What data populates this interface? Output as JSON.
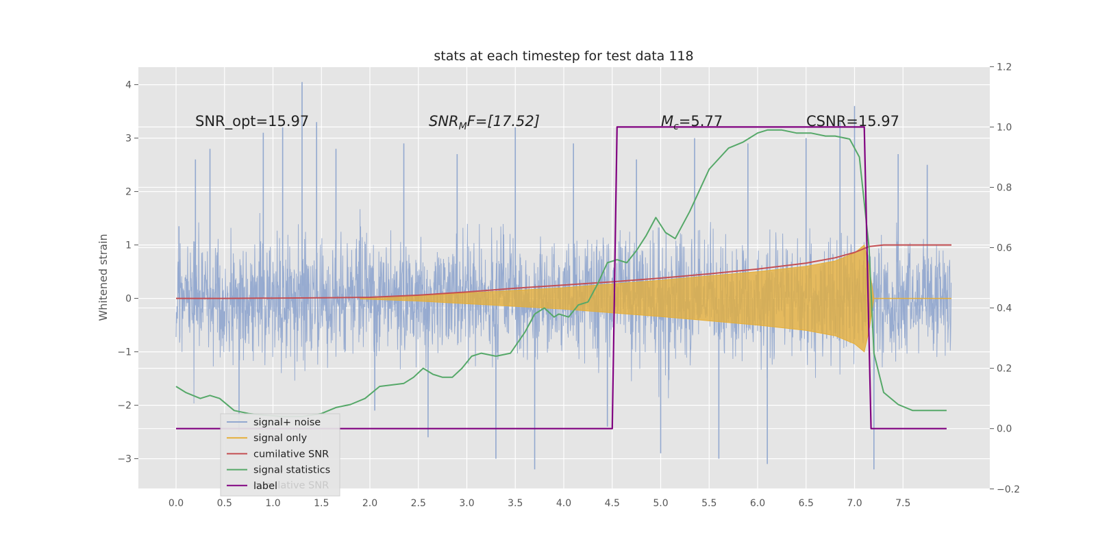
{
  "chart_data": {
    "type": "line",
    "title": "stats at each timestep for test data 118",
    "ylabel": "Whitened strain",
    "xlabel": "",
    "x_ticks": [
      "0.0",
      "0.5",
      "1.0",
      "1.5",
      "2.0",
      "2.5",
      "3.0",
      "3.5",
      "4.0",
      "4.5",
      "5.0",
      "5.5",
      "6.0",
      "6.5",
      "7.0",
      "7.5"
    ],
    "y_ticks_left": [
      "4",
      "3",
      "2",
      "1",
      "0",
      "−1",
      "−2",
      "−3"
    ],
    "y_ticks_right": [
      "1.2",
      "1.0",
      "0.8",
      "0.6",
      "0.4",
      "0.2",
      "0.0",
      "−0.2"
    ],
    "xlim": [
      -0.4,
      8.4
    ],
    "ylim_left": [
      -3.5,
      4.35
    ],
    "ylim_right": [
      -0.2,
      1.2
    ],
    "grid": true,
    "legend_position": "lower-left",
    "annotations": {
      "snr_opt": "SNR_opt=15.97",
      "snr_mf_main": "SNR",
      "snr_mf_sub": "M",
      "snr_mf_tail": "F=[17.52]",
      "mc_main": "M",
      "mc_sub": "c",
      "mc_tail": "=5.77",
      "csnr": "CSNR=15.97"
    },
    "legend_hidden_text": "cumilative SNR",
    "series": [
      {
        "name": "signal+ noise",
        "color": "#92a8cf",
        "axis": "left",
        "description_x_range": [
          0,
          8
        ],
        "noise_spikes_x": [
          0.03,
          0.2,
          0.35,
          0.65,
          0.9,
          1.1,
          1.3,
          1.45,
          1.65,
          2.05,
          2.35,
          2.6,
          2.9,
          3.3,
          3.5,
          3.7,
          4.1,
          4.45,
          4.75,
          5.0,
          5.35,
          5.6,
          5.9,
          6.1,
          6.5,
          6.85,
          7.0,
          7.2,
          7.45,
          7.75
        ],
        "noise_spikes_y": [
          1.35,
          2.6,
          2.8,
          -2.5,
          3.1,
          3.2,
          4.05,
          3.3,
          2.8,
          -2.1,
          2.9,
          -2.6,
          2.7,
          -3.0,
          3.2,
          -3.2,
          2.9,
          -2.4,
          2.6,
          -2.9,
          3.0,
          -3.0,
          2.9,
          -3.1,
          3.0,
          3.3,
          3.6,
          -3.2,
          2.7,
          2.5
        ]
      },
      {
        "name": "signal only",
        "color": "#e5ae38",
        "axis": "left",
        "x": [
          1.9,
          2.5,
          3.0,
          3.5,
          4.0,
          4.5,
          5.0,
          5.5,
          6.0,
          6.5,
          6.8,
          7.0,
          7.1,
          7.15,
          7.2
        ],
        "y": [
          0.01,
          0.05,
          0.1,
          0.15,
          0.2,
          0.27,
          0.34,
          0.42,
          0.5,
          0.6,
          0.7,
          0.85,
          1.0,
          0.6,
          0.0
        ]
      },
      {
        "name": "cumilative SNR",
        "color": "#c44e52",
        "axis": "left",
        "x": [
          0.0,
          0.5,
          1.0,
          1.5,
          2.0,
          2.5,
          3.0,
          3.5,
          4.0,
          4.5,
          5.0,
          5.5,
          6.0,
          6.5,
          6.8,
          7.0,
          7.15,
          7.3,
          7.5,
          8.0
        ],
        "y": [
          0.0,
          0.0,
          0.005,
          0.01,
          0.02,
          0.06,
          0.12,
          0.19,
          0.25,
          0.31,
          0.38,
          0.46,
          0.55,
          0.66,
          0.76,
          0.86,
          0.97,
          1.0,
          1.0,
          1.0
        ]
      },
      {
        "name": "signal statistics",
        "color": "#55a868",
        "axis": "right",
        "x": [
          0.0,
          0.1,
          0.25,
          0.35,
          0.45,
          0.6,
          0.75,
          0.9,
          1.1,
          1.3,
          1.5,
          1.65,
          1.8,
          1.95,
          2.1,
          2.35,
          2.45,
          2.55,
          2.65,
          2.75,
          2.85,
          2.95,
          3.05,
          3.15,
          3.3,
          3.45,
          3.6,
          3.7,
          3.8,
          3.9,
          3.95,
          4.05,
          4.15,
          4.25,
          4.35,
          4.45,
          4.55,
          4.65,
          4.75,
          4.85,
          4.95,
          5.05,
          5.15,
          5.3,
          5.5,
          5.7,
          5.85,
          6.0,
          6.1,
          6.25,
          6.4,
          6.55,
          6.7,
          6.8,
          6.95,
          7.05,
          7.15,
          7.2,
          7.3,
          7.45,
          7.6,
          7.75,
          7.95
        ],
        "y": [
          0.14,
          0.12,
          0.1,
          0.11,
          0.1,
          0.06,
          0.05,
          0.045,
          0.04,
          0.04,
          0.05,
          0.07,
          0.08,
          0.1,
          0.14,
          0.15,
          0.17,
          0.2,
          0.18,
          0.17,
          0.17,
          0.2,
          0.24,
          0.25,
          0.24,
          0.25,
          0.32,
          0.38,
          0.4,
          0.37,
          0.38,
          0.37,
          0.41,
          0.42,
          0.48,
          0.55,
          0.56,
          0.55,
          0.59,
          0.64,
          0.7,
          0.65,
          0.63,
          0.72,
          0.86,
          0.93,
          0.95,
          0.98,
          0.99,
          0.99,
          0.98,
          0.98,
          0.97,
          0.97,
          0.96,
          0.9,
          0.6,
          0.25,
          0.12,
          0.08,
          0.06,
          0.06,
          0.06
        ]
      },
      {
        "name": "label",
        "color": "#800080",
        "axis": "right",
        "x": [
          0.0,
          4.5,
          4.55,
          7.1,
          7.17,
          7.95
        ],
        "y": [
          0.0,
          0.0,
          1.0,
          1.0,
          0.0,
          0.0
        ]
      }
    ]
  }
}
